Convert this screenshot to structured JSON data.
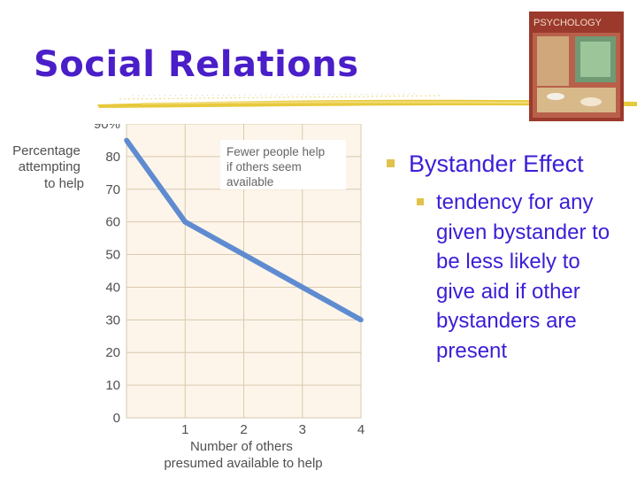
{
  "slide": {
    "title": "Social Relations",
    "book_cover_text": "PSYCHOLOGY",
    "bullet_main": "Bystander Effect",
    "bullet_sub": "tendency for any given bystander to be less likely to give aid if other bystanders are present"
  },
  "colors": {
    "title": "#4a1ec8",
    "bullet_text": "#3a1fd6",
    "bullet_marker": "#e2c24a",
    "underline": "#e7c93c",
    "line": "#5f8bd0",
    "plot_bg": "#fdf5ea",
    "grid": "#d9c9ae"
  },
  "chart_data": {
    "type": "line",
    "ylabel": "Percentage attempting to help",
    "xlabel": "Number of others presumed available to help",
    "annotation": "Fewer people help if others seem available",
    "x": [
      0,
      1,
      2,
      3,
      4
    ],
    "y": [
      85,
      60,
      50,
      40,
      30
    ],
    "xlim": [
      0,
      4
    ],
    "ylim": [
      0,
      90
    ],
    "x_ticks": [
      "1",
      "2",
      "3",
      "4"
    ],
    "y_ticks": [
      "0",
      "10",
      "20",
      "30",
      "40",
      "50",
      "60",
      "70",
      "80",
      "90%"
    ],
    "grid": true,
    "legend": "none"
  }
}
